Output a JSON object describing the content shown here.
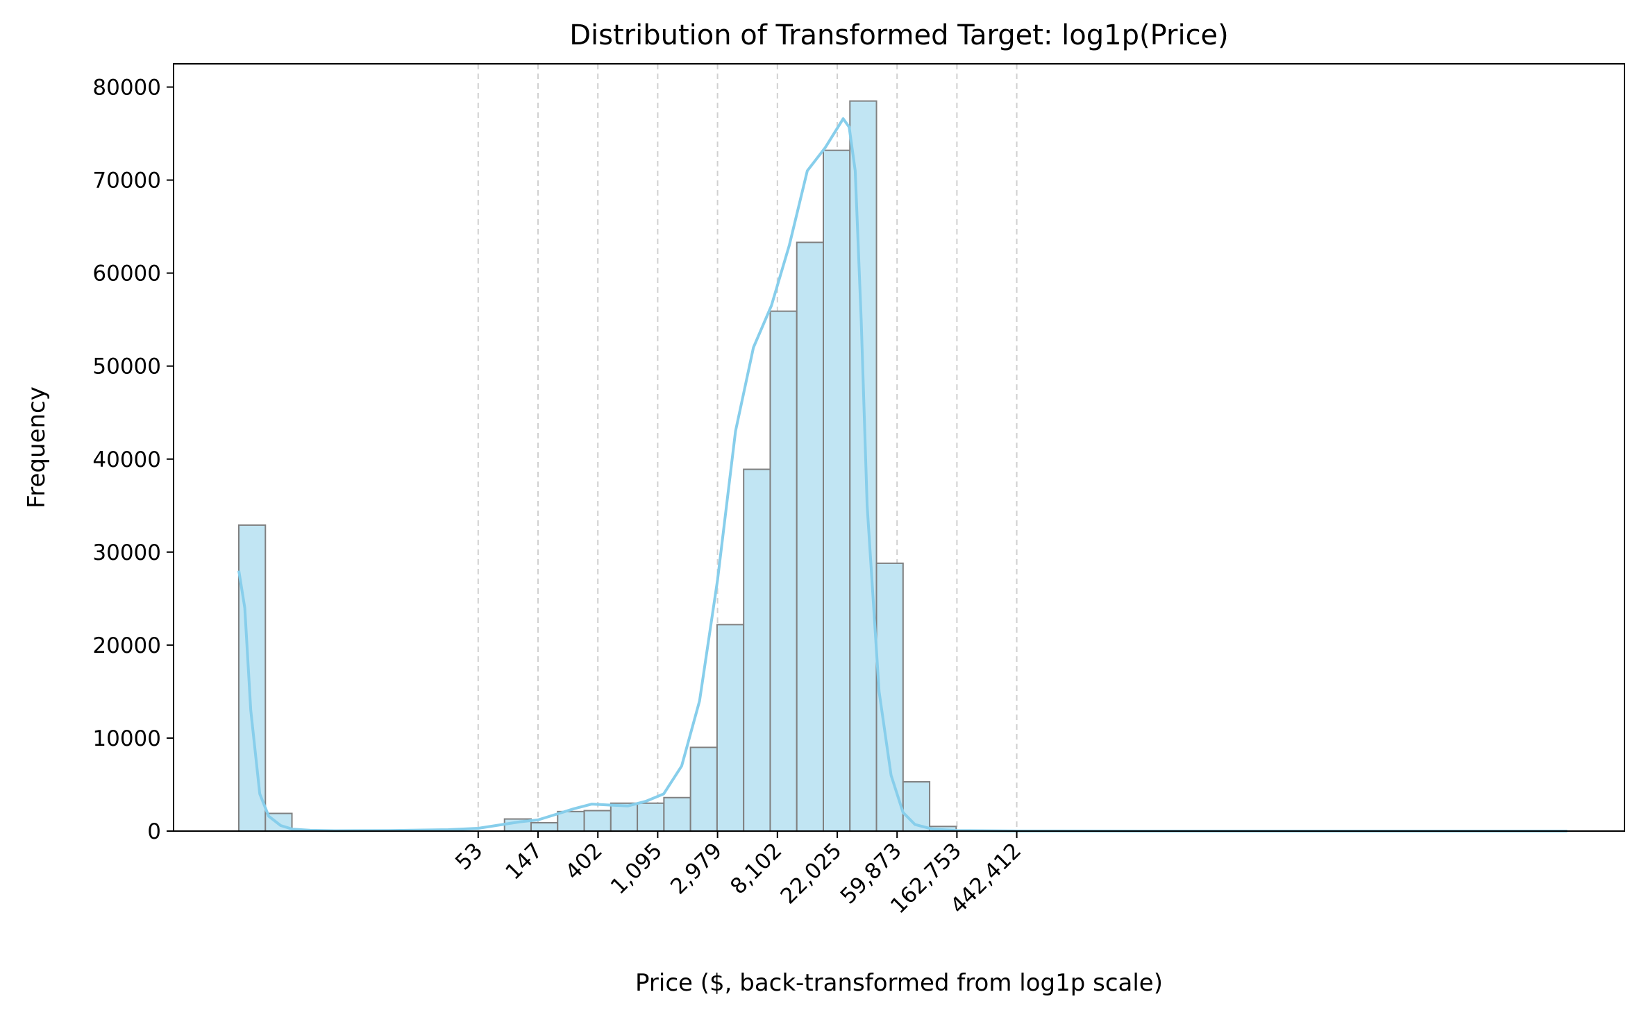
{
  "chart_data": {
    "type": "bar",
    "title": "Distribution of Transformed Target: log1p(Price)",
    "xlabel": "Price ($, back-transformed from log1p scale)",
    "ylabel": "Frequency",
    "x_scale": "log1p",
    "x_range_log1p": [
      0,
      13
    ],
    "ylim": [
      0,
      82500
    ],
    "y_ticks": [
      0,
      10000,
      20000,
      30000,
      40000,
      50000,
      60000,
      70000,
      80000
    ],
    "x_ticks": [
      {
        "log1p": 4,
        "label": "53"
      },
      {
        "log1p": 5,
        "label": "147"
      },
      {
        "log1p": 6,
        "label": "402"
      },
      {
        "log1p": 7,
        "label": "1,095"
      },
      {
        "log1p": 8,
        "label": "2,979"
      },
      {
        "log1p": 9,
        "label": "8,102"
      },
      {
        "log1p": 10,
        "label": "22,025"
      },
      {
        "log1p": 11,
        "label": "59,873"
      },
      {
        "log1p": 12,
        "label": "162,753"
      },
      {
        "log1p": 13,
        "label": "442,412"
      }
    ],
    "grid": "vertical dashed at x ticks",
    "bin_edges_log1p": [
      0,
      0.444,
      0.888,
      1.332,
      1.776,
      2.22,
      2.664,
      3.108,
      3.552,
      3.996,
      4.44,
      4.884,
      5.328,
      5.772,
      6.216,
      6.66,
      7.104,
      7.548,
      7.992,
      8.436,
      8.88,
      9.324,
      9.768,
      10.212,
      10.656,
      11.1,
      11.544,
      11.988,
      12.432,
      12.876,
      13.32,
      13.764,
      14.208,
      14.652,
      15.096,
      15.54,
      15.984,
      16.428,
      16.872,
      17.316,
      17.76,
      18.204,
      18.648,
      19.092,
      19.536,
      19.98,
      20.424,
      20.868,
      21.312,
      21.756,
      22.2
    ],
    "frequencies": [
      32900,
      1900,
      0,
      0,
      0,
      0,
      0,
      0,
      0,
      0,
      1300,
      900,
      2100,
      2200,
      3000,
      3000,
      3600,
      9000,
      22200,
      38900,
      55900,
      63300,
      73200,
      78500,
      28800,
      5300,
      500,
      0,
      0,
      0,
      0,
      0,
      0,
      0,
      0,
      0,
      0,
      0,
      0,
      0,
      0,
      0,
      0,
      0,
      0,
      0,
      0,
      0,
      0,
      0
    ],
    "kde": {
      "x_log1p": [
        0,
        0.1,
        0.2,
        0.35,
        0.5,
        0.7,
        0.9,
        1.2,
        1.6,
        2.5,
        3.5,
        4.0,
        4.4,
        4.7,
        5.0,
        5.3,
        5.6,
        5.9,
        6.2,
        6.5,
        6.8,
        7.1,
        7.4,
        7.7,
        8.0,
        8.3,
        8.6,
        8.9,
        9.2,
        9.5,
        9.8,
        10.1,
        10.2,
        10.3,
        10.4,
        10.5,
        10.7,
        10.9,
        11.1,
        11.3,
        11.6,
        12.0,
        13.0,
        16.0,
        19.0,
        22.2
      ],
      "density": [
        28000,
        24000,
        13000,
        4000,
        1600,
        600,
        200,
        80,
        40,
        50,
        150,
        300,
        700,
        1000,
        1200,
        1800,
        2400,
        2900,
        2800,
        2700,
        3200,
        4000,
        7000,
        14000,
        27000,
        43000,
        52000,
        56500,
        63000,
        71000,
        73500,
        76600,
        75700,
        71000,
        55000,
        35000,
        15000,
        6000,
        2000,
        700,
        200,
        50,
        10,
        0,
        0,
        0
      ],
      "color": "#87ceeb"
    },
    "colors": {
      "bar_fill": "#c1e5f3",
      "bar_edge": "#808080",
      "grid": "#d0d0d0"
    }
  }
}
